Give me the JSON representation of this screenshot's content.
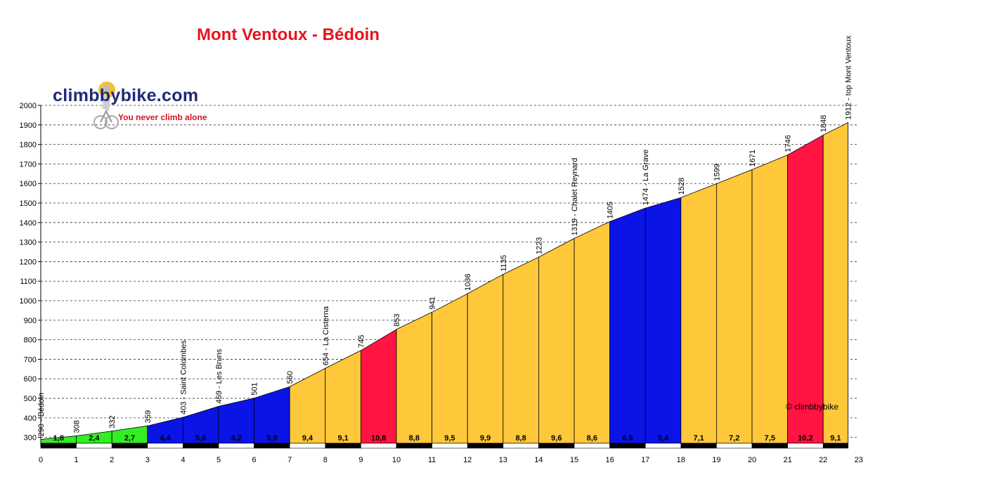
{
  "header": {
    "title": "Mont Ventoux - Bédoin",
    "logo_text": "climbbybike.com",
    "tagline": "You never climb alone",
    "copyright": "© climbbybike"
  },
  "chart_data": {
    "type": "area",
    "title": "Mont Ventoux - Bédoin",
    "xlabel": "",
    "ylabel": "",
    "xlim": [
      0,
      23
    ],
    "ylim": [
      270,
      2000
    ],
    "x_ticks": [
      0,
      1,
      2,
      3,
      4,
      5,
      6,
      7,
      8,
      9,
      10,
      11,
      12,
      13,
      14,
      15,
      16,
      17,
      18,
      19,
      20,
      21,
      22,
      23
    ],
    "y_ticks": [
      300,
      400,
      500,
      600,
      700,
      800,
      900,
      1000,
      1100,
      1200,
      1300,
      1400,
      1500,
      1600,
      1700,
      1800,
      1900,
      2000
    ],
    "grid": "horizontal dashed",
    "points": [
      {
        "km": 0,
        "alt": 290,
        "label": "290 - Bédoin"
      },
      {
        "km": 1,
        "alt": 308,
        "label": "308"
      },
      {
        "km": 2,
        "alt": 332,
        "label": "332"
      },
      {
        "km": 3,
        "alt": 359,
        "label": "359"
      },
      {
        "km": 4,
        "alt": 403,
        "label": "403 - Saint Colombes"
      },
      {
        "km": 5,
        "alt": 459,
        "label": "459 - Les Bruns"
      },
      {
        "km": 6,
        "alt": 501,
        "label": "501"
      },
      {
        "km": 7,
        "alt": 560,
        "label": "560"
      },
      {
        "km": 8,
        "alt": 654,
        "label": "654 - La Cisterna"
      },
      {
        "km": 9,
        "alt": 745,
        "label": "745"
      },
      {
        "km": 10,
        "alt": 853,
        "label": "853"
      },
      {
        "km": 11,
        "alt": 941,
        "label": "941"
      },
      {
        "km": 12,
        "alt": 1036,
        "label": "1036"
      },
      {
        "km": 13,
        "alt": 1135,
        "label": "1135"
      },
      {
        "km": 14,
        "alt": 1223,
        "label": "1223"
      },
      {
        "km": 15,
        "alt": 1319,
        "label": "1319 - Chalet Reynard"
      },
      {
        "km": 16,
        "alt": 1405,
        "label": "1405"
      },
      {
        "km": 17,
        "alt": 1474,
        "label": "1474 - La Grave"
      },
      {
        "km": 18,
        "alt": 1528,
        "label": "1528"
      },
      {
        "km": 19,
        "alt": 1599,
        "label": "1599"
      },
      {
        "km": 20,
        "alt": 1671,
        "label": "1671"
      },
      {
        "km": 21,
        "alt": 1746,
        "label": "1746"
      },
      {
        "km": 22,
        "alt": 1848,
        "label": "1848"
      },
      {
        "km": 22.7,
        "alt": 1912,
        "label": "1912 - top Mont Ventoux"
      }
    ],
    "segments": [
      {
        "grade": "1,8",
        "color": "#33ee22"
      },
      {
        "grade": "2,4",
        "color": "#33ee22"
      },
      {
        "grade": "2,7",
        "color": "#33ee22"
      },
      {
        "grade": "4,4",
        "color": "#0a14e6"
      },
      {
        "grade": "5,6",
        "color": "#0a14e6"
      },
      {
        "grade": "4,2",
        "color": "#0a14e6"
      },
      {
        "grade": "5,9",
        "color": "#0a14e6"
      },
      {
        "grade": "9,4",
        "color": "#ffc83a"
      },
      {
        "grade": "9,1",
        "color": "#ffc83a"
      },
      {
        "grade": "10,8",
        "color": "#ff1442"
      },
      {
        "grade": "8,8",
        "color": "#ffc83a"
      },
      {
        "grade": "9,5",
        "color": "#ffc83a"
      },
      {
        "grade": "9,9",
        "color": "#ffc83a"
      },
      {
        "grade": "8,8",
        "color": "#ffc83a"
      },
      {
        "grade": "9,6",
        "color": "#ffc83a"
      },
      {
        "grade": "8,6",
        "color": "#ffc83a"
      },
      {
        "grade": "6,9",
        "color": "#0a14e6"
      },
      {
        "grade": "5,4",
        "color": "#0a14e6"
      },
      {
        "grade": "7,1",
        "color": "#ffc83a"
      },
      {
        "grade": "7,2",
        "color": "#ffc83a"
      },
      {
        "grade": "7,5",
        "color": "#ffc83a"
      },
      {
        "grade": "10,2",
        "color": "#ff1442"
      },
      {
        "grade": "9,1",
        "color": "#ffc83a"
      }
    ]
  }
}
